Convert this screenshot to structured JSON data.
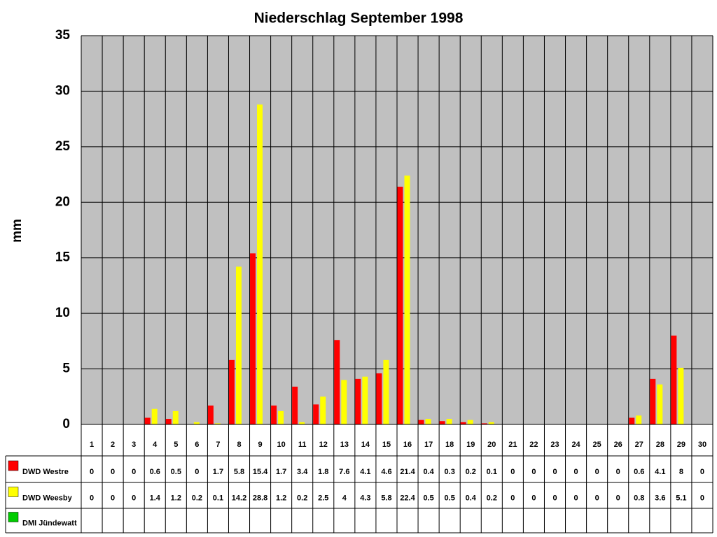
{
  "chart_data": {
    "type": "bar",
    "title": "Niederschlag September 1998",
    "y_label": "mm",
    "categories": [
      "1",
      "2",
      "3",
      "4",
      "5",
      "6",
      "7",
      "8",
      "9",
      "10",
      "11",
      "12",
      "13",
      "14",
      "15",
      "16",
      "17",
      "18",
      "19",
      "20",
      "21",
      "22",
      "23",
      "24",
      "25",
      "26",
      "27",
      "28",
      "29",
      "30"
    ],
    "series": [
      {
        "name": "DWD Westre",
        "color": "#ff0000",
        "values": [
          0,
          0,
          0,
          0.6,
          0.5,
          0,
          1.7,
          5.8,
          15.4,
          1.7,
          3.4,
          1.8,
          7.6,
          4.1,
          4.6,
          21.4,
          0.4,
          0.3,
          0.2,
          0.1,
          0,
          0,
          0,
          0,
          0,
          0,
          0.6,
          4.1,
          8,
          0
        ]
      },
      {
        "name": "DWD Weesby",
        "color": "#ffff00",
        "values": [
          0,
          0,
          0,
          1.4,
          1.2,
          0.2,
          0.1,
          14.2,
          28.8,
          1.2,
          0.2,
          2.5,
          4,
          4.3,
          5.8,
          22.4,
          0.5,
          0.5,
          0.4,
          0.2,
          0,
          0,
          0,
          0,
          0,
          0,
          0.8,
          3.6,
          5.1,
          0
        ]
      },
      {
        "name": "DMI Jündewatt",
        "color": "#00cc00",
        "values": [
          null,
          null,
          null,
          null,
          null,
          null,
          null,
          null,
          null,
          null,
          null,
          null,
          null,
          null,
          null,
          null,
          null,
          null,
          null,
          null,
          null,
          null,
          null,
          null,
          null,
          null,
          null,
          null,
          null,
          null
        ]
      }
    ],
    "ylim": [
      0,
      35
    ],
    "yticks": [
      0,
      5,
      10,
      15,
      20,
      25,
      30,
      35
    ],
    "grid": true,
    "plot_background": "#c0c0c0"
  }
}
